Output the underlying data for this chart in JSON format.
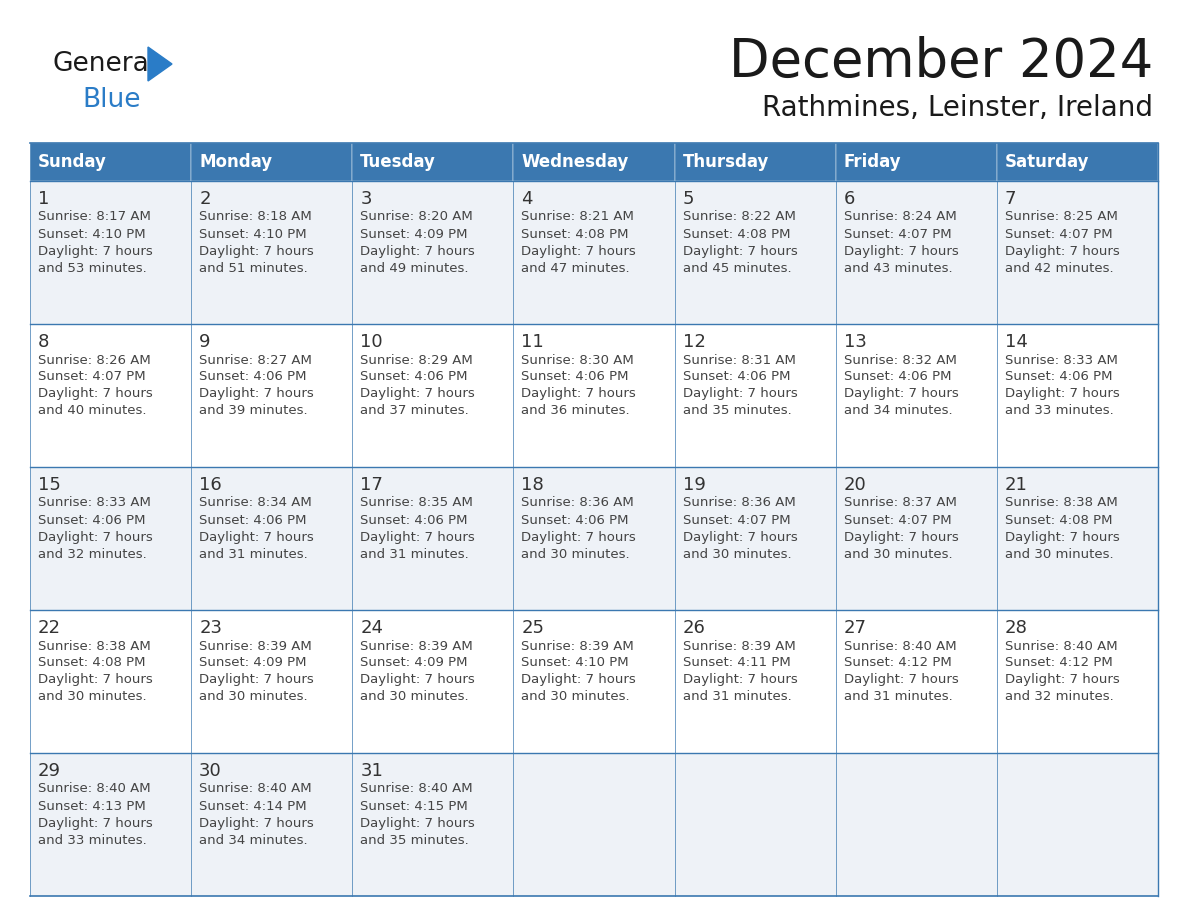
{
  "title": "December 2024",
  "subtitle": "Rathmines, Leinster, Ireland",
  "days_of_week": [
    "Sunday",
    "Monday",
    "Tuesday",
    "Wednesday",
    "Thursday",
    "Friday",
    "Saturday"
  ],
  "header_bg": "#3b78b0",
  "header_text": "#ffffff",
  "row_bg_odd": "#eef2f7",
  "row_bg_even": "#ffffff",
  "cell_border": "#3b78b0",
  "day_num_color": "#333333",
  "text_color": "#444444",
  "title_color": "#1a1a1a",
  "calendar": [
    [
      {
        "day": "1",
        "sunrise": "8:17 AM",
        "sunset": "4:10 PM",
        "daylight_h": "7",
        "daylight_m": "53"
      },
      {
        "day": "2",
        "sunrise": "8:18 AM",
        "sunset": "4:10 PM",
        "daylight_h": "7",
        "daylight_m": "51"
      },
      {
        "day": "3",
        "sunrise": "8:20 AM",
        "sunset": "4:09 PM",
        "daylight_h": "7",
        "daylight_m": "49"
      },
      {
        "day": "4",
        "sunrise": "8:21 AM",
        "sunset": "4:08 PM",
        "daylight_h": "7",
        "daylight_m": "47"
      },
      {
        "day": "5",
        "sunrise": "8:22 AM",
        "sunset": "4:08 PM",
        "daylight_h": "7",
        "daylight_m": "45"
      },
      {
        "day": "6",
        "sunrise": "8:24 AM",
        "sunset": "4:07 PM",
        "daylight_h": "7",
        "daylight_m": "43"
      },
      {
        "day": "7",
        "sunrise": "8:25 AM",
        "sunset": "4:07 PM",
        "daylight_h": "7",
        "daylight_m": "42"
      }
    ],
    [
      {
        "day": "8",
        "sunrise": "8:26 AM",
        "sunset": "4:07 PM",
        "daylight_h": "7",
        "daylight_m": "40"
      },
      {
        "day": "9",
        "sunrise": "8:27 AM",
        "sunset": "4:06 PM",
        "daylight_h": "7",
        "daylight_m": "39"
      },
      {
        "day": "10",
        "sunrise": "8:29 AM",
        "sunset": "4:06 PM",
        "daylight_h": "7",
        "daylight_m": "37"
      },
      {
        "day": "11",
        "sunrise": "8:30 AM",
        "sunset": "4:06 PM",
        "daylight_h": "7",
        "daylight_m": "36"
      },
      {
        "day": "12",
        "sunrise": "8:31 AM",
        "sunset": "4:06 PM",
        "daylight_h": "7",
        "daylight_m": "35"
      },
      {
        "day": "13",
        "sunrise": "8:32 AM",
        "sunset": "4:06 PM",
        "daylight_h": "7",
        "daylight_m": "34"
      },
      {
        "day": "14",
        "sunrise": "8:33 AM",
        "sunset": "4:06 PM",
        "daylight_h": "7",
        "daylight_m": "33"
      }
    ],
    [
      {
        "day": "15",
        "sunrise": "8:33 AM",
        "sunset": "4:06 PM",
        "daylight_h": "7",
        "daylight_m": "32"
      },
      {
        "day": "16",
        "sunrise": "8:34 AM",
        "sunset": "4:06 PM",
        "daylight_h": "7",
        "daylight_m": "31"
      },
      {
        "day": "17",
        "sunrise": "8:35 AM",
        "sunset": "4:06 PM",
        "daylight_h": "7",
        "daylight_m": "31"
      },
      {
        "day": "18",
        "sunrise": "8:36 AM",
        "sunset": "4:06 PM",
        "daylight_h": "7",
        "daylight_m": "30"
      },
      {
        "day": "19",
        "sunrise": "8:36 AM",
        "sunset": "4:07 PM",
        "daylight_h": "7",
        "daylight_m": "30"
      },
      {
        "day": "20",
        "sunrise": "8:37 AM",
        "sunset": "4:07 PM",
        "daylight_h": "7",
        "daylight_m": "30"
      },
      {
        "day": "21",
        "sunrise": "8:38 AM",
        "sunset": "4:08 PM",
        "daylight_h": "7",
        "daylight_m": "30"
      }
    ],
    [
      {
        "day": "22",
        "sunrise": "8:38 AM",
        "sunset": "4:08 PM",
        "daylight_h": "7",
        "daylight_m": "30"
      },
      {
        "day": "23",
        "sunrise": "8:39 AM",
        "sunset": "4:09 PM",
        "daylight_h": "7",
        "daylight_m": "30"
      },
      {
        "day": "24",
        "sunrise": "8:39 AM",
        "sunset": "4:09 PM",
        "daylight_h": "7",
        "daylight_m": "30"
      },
      {
        "day": "25",
        "sunrise": "8:39 AM",
        "sunset": "4:10 PM",
        "daylight_h": "7",
        "daylight_m": "30"
      },
      {
        "day": "26",
        "sunrise": "8:39 AM",
        "sunset": "4:11 PM",
        "daylight_h": "7",
        "daylight_m": "31"
      },
      {
        "day": "27",
        "sunrise": "8:40 AM",
        "sunset": "4:12 PM",
        "daylight_h": "7",
        "daylight_m": "31"
      },
      {
        "day": "28",
        "sunrise": "8:40 AM",
        "sunset": "4:12 PM",
        "daylight_h": "7",
        "daylight_m": "32"
      }
    ],
    [
      {
        "day": "29",
        "sunrise": "8:40 AM",
        "sunset": "4:13 PM",
        "daylight_h": "7",
        "daylight_m": "33"
      },
      {
        "day": "30",
        "sunrise": "8:40 AM",
        "sunset": "4:14 PM",
        "daylight_h": "7",
        "daylight_m": "34"
      },
      {
        "day": "31",
        "sunrise": "8:40 AM",
        "sunset": "4:15 PM",
        "daylight_h": "7",
        "daylight_m": "35"
      },
      null,
      null,
      null,
      null
    ]
  ],
  "logo_blue_color": "#2a7cc7",
  "logo_triangle_color": "#2a7cc7"
}
